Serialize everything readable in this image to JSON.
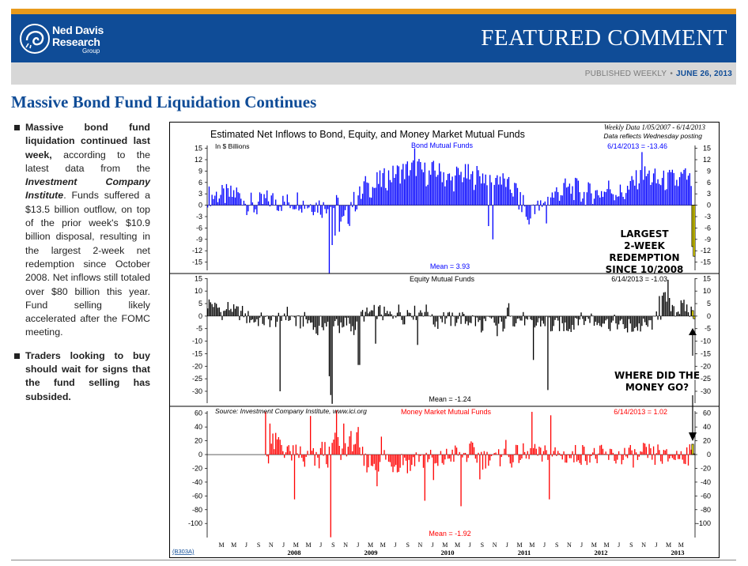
{
  "header": {
    "logo_line1": "Ned Davis",
    "logo_line2": "Research",
    "logo_line3": "Group",
    "banner_title": "FEATURED COMMENT",
    "published": "PUBLISHED WEEKLY",
    "date": "JUNE 26, 2013"
  },
  "headline": "Massive Bond Fund Liquidation Continues",
  "bullets": [
    {
      "bold": "Massive bond fund liquidation continued last week,",
      "text1": " according to the latest data from the ",
      "italic": "Investment Company Institute",
      "text2": ". Funds suffered a $13.5 billion outflow, on top of the prior week's $10.9 billion disposal, resulting in the largest 2-week net redemption since October 2008.  Net inflows still totaled over $80 billion this year.  Fund selling likely accelerated after the FOMC meeting."
    },
    {
      "bold": "Traders looking to buy should wait for signs that the fund selling has subsided.",
      "text1": "",
      "italic": "",
      "text2": ""
    }
  ],
  "chart_data": {
    "type": "bar",
    "title": "Estimated Net Inflows to Bond, Equity, and Money Market Mutual Funds",
    "subtitle": "Weekly Data 1/05/2007 - 6/14/2013",
    "subtitle2": "Data reflects Wednesday posting",
    "units": "In $ Billions",
    "source": "Source: Investment Company Institute, www.ici.org",
    "chart_code": "(B303A)",
    "colors": {
      "bond": "#0000ff",
      "equity": "#000000",
      "money": "#ff0000",
      "highlight": "#f2e600"
    },
    "month_labels": [
      "M",
      "M",
      "J",
      "S",
      "N",
      "J",
      "M",
      "M",
      "J",
      "S",
      "N",
      "J",
      "M",
      "M",
      "J",
      "S",
      "N",
      "J",
      "M",
      "M",
      "J",
      "S",
      "N",
      "J",
      "M",
      "M",
      "J",
      "S",
      "N",
      "J",
      "M",
      "M",
      "J",
      "S",
      "N",
      "J",
      "M",
      "M"
    ],
    "year_labels": [
      "2008",
      "2009",
      "2010",
      "2011",
      "2012",
      "2013"
    ],
    "panels": [
      {
        "name": "Bond Mutual Funds",
        "last_label": "6/14/2013 = -13.46",
        "mean_label": "Mean = 3.93",
        "ticks": [
          "15",
          "12",
          "9",
          "6",
          "3",
          "0",
          "-3",
          "-6",
          "-9",
          "-12",
          "-15"
        ],
        "ylim": [
          -18,
          17
        ],
        "annotation": [
          "LARGEST",
          "2-WEEK",
          "REDEMPTION",
          "SINCE 10/2008"
        ],
        "last_values": [
          -10.9,
          -13.46
        ],
        "spikes": [
          [
            84,
            -18.0
          ],
          [
            86,
            -10.5
          ],
          [
            88,
            -8.0
          ],
          [
            91,
            -7.0
          ],
          [
            194,
            -5.5
          ],
          [
            197,
            -9.0
          ],
          [
            223,
            -3.5
          ],
          [
            234,
            -4.8
          ],
          [
            143,
            15.0
          ],
          [
            110,
            6.0
          ],
          [
            300,
            14.0
          ]
        ],
        "monthly_mean": [
          2.4,
          2.8,
          2.5,
          2.6,
          3.1,
          2.2,
          0.4,
          -0.6,
          0.5,
          1.3,
          1.4,
          0.8,
          0.6,
          0.9,
          1.5,
          0.6,
          0.2,
          0.1,
          -0.6,
          0.3,
          0.1,
          -4.5,
          -2.8,
          0.9,
          2.6,
          5.0,
          4.8,
          6.2,
          6.9,
          7.8,
          8.6,
          9.0,
          9.6,
          10.2,
          8.8,
          7.9,
          9.0,
          8.6,
          6.9,
          6.5,
          8.0,
          8.0,
          7.0,
          7.9,
          7.7,
          7.2,
          7.4,
          6.2,
          4.6,
          4.0,
          0.5,
          -3.8,
          0.2,
          -0.8,
          1.6,
          2.6,
          3.5,
          4.4,
          4.1,
          4.3,
          2.8,
          3.2,
          3.2,
          3.5,
          4.6,
          3.6,
          3.2,
          4.0,
          6.3,
          7.0,
          7.9,
          7.0,
          6.1,
          6.4,
          6.8,
          6.1,
          7.4,
          6.2,
          5.5,
          4.8
        ]
      },
      {
        "name": "Equity Mutual Funds",
        "last_label": "6/14/2013 = -1.03",
        "mean_label": "Mean = -1.24",
        "ticks": [
          "15",
          "10",
          "5",
          "0",
          "-5",
          "-10",
          "-15",
          "-20",
          "-25",
          "-30"
        ],
        "ylim": [
          -36,
          17
        ],
        "annotation": [
          "WHERE DID THE",
          "MONEY GO?"
        ],
        "last_values": [
          2.2,
          -1.03
        ],
        "spikes": [
          [
            50,
            -30.0
          ],
          [
            84,
            -24.0
          ],
          [
            85,
            -31.5
          ],
          [
            86,
            -35.0
          ],
          [
            104,
            -19.5
          ],
          [
            105,
            -19.5
          ],
          [
            116,
            -11.0
          ],
          [
            145,
            -11.5
          ],
          [
            189,
            -6.5
          ],
          [
            225,
            -17.5
          ],
          [
            235,
            -29.5
          ],
          [
            200,
            -8.0
          ],
          [
            290,
            -6.5
          ],
          [
            318,
            14.5
          ],
          [
            312,
            8.0
          ]
        ],
        "monthly_mean": [
          5.1,
          3.3,
          1.5,
          3.4,
          1.6,
          1.3,
          -0.6,
          -1.7,
          -1.5,
          -2.1,
          -1.7,
          -1.8,
          1.1,
          -0.6,
          -2.6,
          -1.5,
          -2.3,
          -5.9,
          -3.0,
          -3.4,
          -1.7,
          -5.3,
          -2.8,
          -4.6,
          0.8,
          0.6,
          1.5,
          1.8,
          0.6,
          0.2,
          2.1,
          -0.2,
          2.3,
          1.2,
          2.4,
          1.9,
          -2.3,
          -0.2,
          -1.1,
          -1.6,
          -0.6,
          -1.9,
          -1.2,
          -2.4,
          -2.8,
          -2.4,
          -3.1,
          -3.6,
          2.5,
          -1.3,
          -1.2,
          -3.1,
          -3.8,
          -2.4,
          -2.2,
          -4.5,
          -3.3,
          -4.0,
          -3.6,
          -0.5,
          -1.6,
          -0.5,
          -2.4,
          -1.6,
          -3.0,
          -2.6,
          -3.8,
          -3.6,
          -4.5,
          -4.3,
          -3.8,
          -2.8,
          1.0,
          6.8,
          4.4,
          2.6,
          3.5,
          1.8,
          2.2,
          2.6
        ]
      },
      {
        "name": "Money Market Mutual Funds",
        "last_label": "6/14/2013 = 1.02",
        "mean_label": "Mean = -1.92",
        "ticks": [
          "60",
          "40",
          "20",
          "0",
          "-20",
          "-40",
          "-60",
          "-80",
          "-100"
        ],
        "ylim": [
          -125,
          70
        ],
        "last_values": [
          15.0,
          1.02
        ],
        "spikes": [
          [
            40,
            62.0
          ],
          [
            43,
            45.0
          ],
          [
            60,
            -65.0
          ],
          [
            71,
            56.0
          ],
          [
            85,
            -120.0
          ],
          [
            89,
            64.0
          ],
          [
            94,
            45.0
          ],
          [
            104,
            40.0
          ],
          [
            117,
            -46.0
          ],
          [
            150,
            -67.0
          ],
          [
            156,
            -37.0
          ],
          [
            175,
            -75.0
          ],
          [
            224,
            62.0
          ],
          [
            236,
            -65.0
          ],
          [
            237,
            57.0
          ],
          [
            188,
            -36.0
          ],
          [
            120,
            26.0
          ]
        ],
        "monthly_mean": [
          0,
          0,
          0,
          0,
          0,
          0,
          0,
          0,
          0,
          0,
          16.2,
          17.2,
          7.1,
          0.7,
          2.2,
          -10.5,
          -3.9,
          -9.8,
          6.4,
          -3.8,
          16.8,
          3.7,
          12.6,
          20.0,
          -2.9,
          -11.1,
          -11.2,
          -20.1,
          -1.9,
          -13.5,
          -11.8,
          -4.8,
          -17.0,
          -2.2,
          -8.6,
          -1.8,
          -18.1,
          -7.7,
          -3.9,
          0.4,
          1.3,
          -0.2,
          3.8,
          -2.3,
          -6.1,
          -0.8,
          -7.6,
          10.5,
          -5.4,
          -1.5,
          0.4,
          -2.7,
          7.1,
          -3.4,
          -0.6,
          1.2,
          -0.2,
          -1.5,
          -3.8,
          -0.4,
          0.9,
          0.3,
          -3.2,
          -1.6,
          -2.7,
          -3.7,
          -0.8,
          -2.1,
          -3.0,
          -4.8,
          1.5,
          -3.0,
          2.0,
          -5.6,
          -2.6,
          -2.5,
          0.9,
          -1.1,
          -0.4,
          -1.7
        ]
      }
    ]
  }
}
